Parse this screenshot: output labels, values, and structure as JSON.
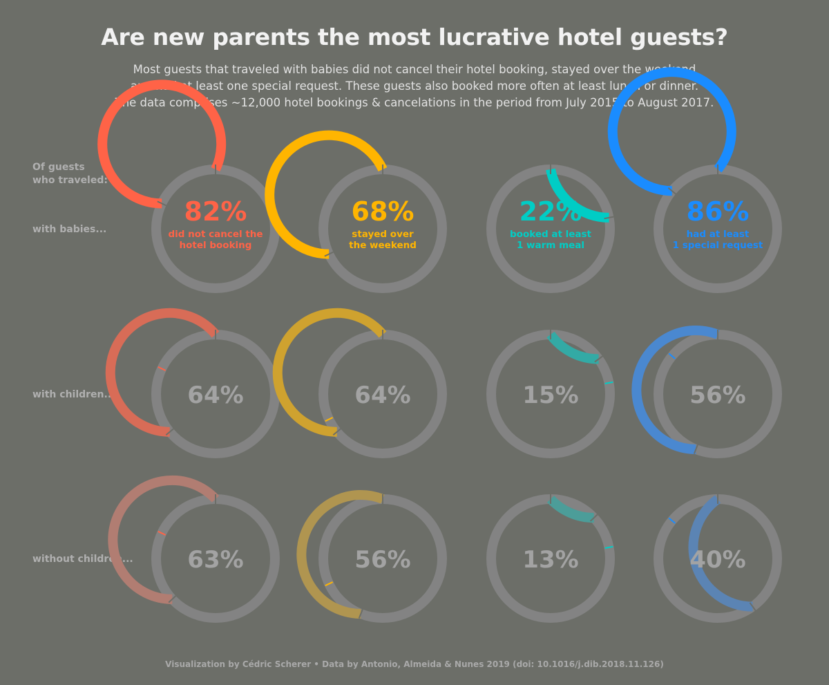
{
  "title": "Are new parents the most lucrative hotel guests?",
  "subtitle": [
    "Most guests that traveled with babies did not cancel their hotel booking, stayed over the weekend",
    "and had at least one special request. These guests also booked more often at least lunch or dinner.",
    "The data comprises ~12,000 hotel bookings & cancelations in the period from July 2015 to August 2017."
  ],
  "caption": "Visualization by Cédric Scherer  •  Data by Antonio, Almeida & Nunes 2019 (doi: 10.1016/j.dib.2018.11.126)",
  "colors": {
    "background": "#6c6e68",
    "track": "#838383",
    "muted_text": "#a3a3a3",
    "metrics": [
      "#ff6347",
      "#ffb500",
      "#00cdc5",
      "#1a8cff"
    ],
    "row_shades": [
      [
        "#ff6347",
        "#ffb500",
        "#00cdc5",
        "#1a8cff"
      ],
      [
        "#d86c57",
        "#cfa22f",
        "#33aaa5",
        "#4a88d0"
      ],
      [
        "#b17d72",
        "#b09550",
        "#4c9d99",
        "#5b84b4"
      ]
    ]
  },
  "chart_data": {
    "type": "donut-grid",
    "header_label": [
      "Of guests",
      "who traveled:"
    ],
    "metrics": [
      {
        "key": "not_canceled",
        "description": [
          "did not cancel the",
          "hotel booking"
        ]
      },
      {
        "key": "weekend",
        "description": [
          "stayed over",
          "the weekend"
        ]
      },
      {
        "key": "warm_meal",
        "description": [
          "booked at least",
          "1 warm meal"
        ]
      },
      {
        "key": "special_request",
        "description": [
          "had at least",
          "1 special request"
        ]
      }
    ],
    "groups": [
      {
        "label": "with babies...",
        "values": [
          82,
          68,
          22,
          86
        ]
      },
      {
        "label": "with children...",
        "values": [
          64,
          64,
          15,
          56
        ]
      },
      {
        "label": "without children...",
        "values": [
          63,
          56,
          13,
          40
        ]
      }
    ],
    "reference_group_index": 0,
    "value_suffix": "%"
  }
}
